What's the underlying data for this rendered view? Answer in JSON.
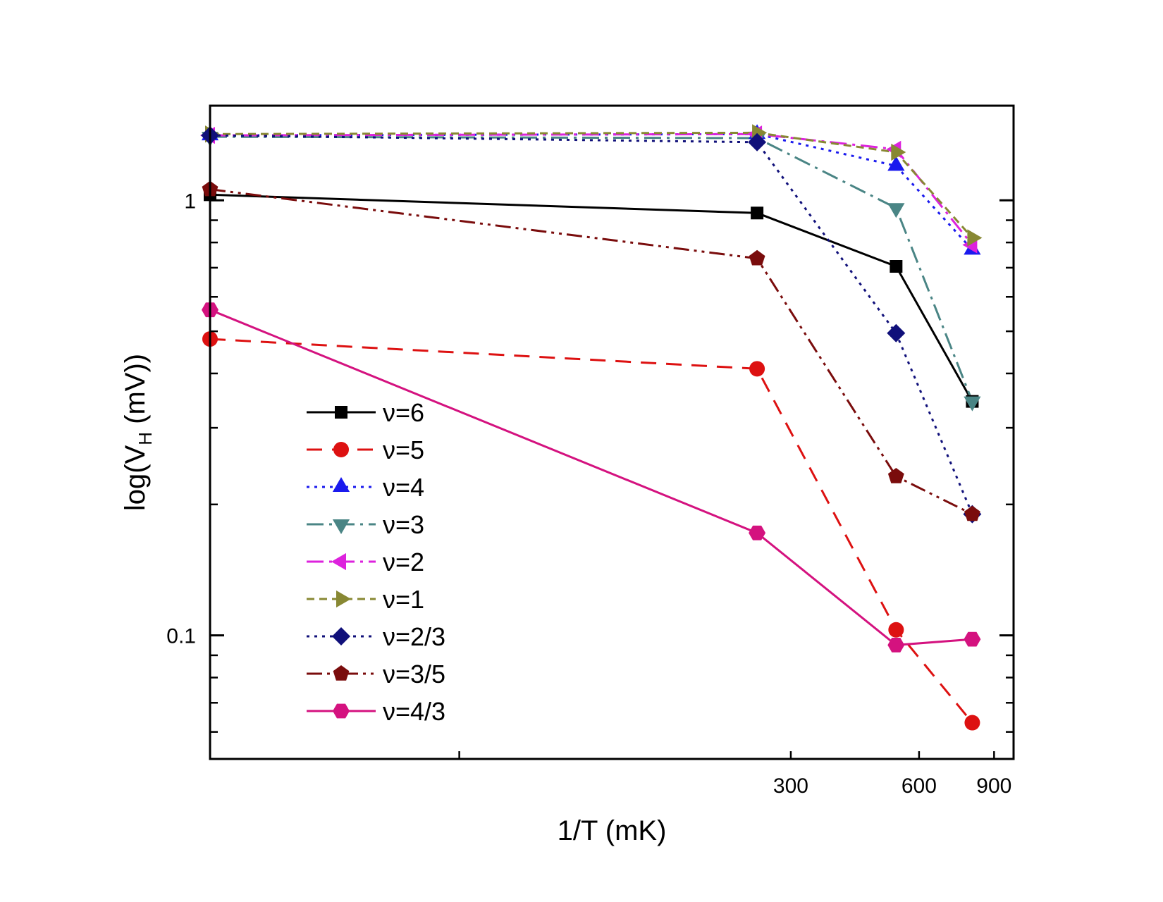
{
  "chart_data": {
    "type": "line",
    "title": "",
    "xlabel": "1/T (mK)",
    "ylabel_prefix": "log(V",
    "ylabel_sub": "H",
    "ylabel_suffix": " (mV))",
    "x_scale": "log",
    "y_scale": "log",
    "xlim": [
      13,
      1000
    ],
    "ylim": [
      0.052,
      1.65
    ],
    "x_ticks": [
      {
        "value": 300,
        "label": "300"
      },
      {
        "value": 600,
        "label": "600"
      },
      {
        "value": 900,
        "label": "900"
      }
    ],
    "x_minor_ticks": [
      13,
      50,
      300,
      600,
      900
    ],
    "y_ticks": [
      {
        "value": 1,
        "label": "1"
      },
      {
        "value": 0.1,
        "label": "0.1"
      }
    ],
    "y_minor_ticks": [
      0.06,
      0.07,
      0.08,
      0.09,
      0.2,
      0.3,
      0.4,
      0.5,
      0.6,
      0.7,
      0.8,
      0.9
    ],
    "legend_position": "center-left",
    "x": [
      13,
      250,
      530,
      800
    ],
    "series": [
      {
        "name": "ν=6",
        "color": "#000000",
        "dash": "solid",
        "marker": "square",
        "values": [
          1.03,
          0.935,
          0.705,
          0.345
        ]
      },
      {
        "name": "ν=5",
        "color": "#dd1111",
        "dash": "dash",
        "marker": "circle",
        "values": [
          0.48,
          0.41,
          0.103,
          0.063
        ]
      },
      {
        "name": "ν=4",
        "color": "#1a1aee",
        "dash": "dot",
        "marker": "triangle-up",
        "values": [
          1.41,
          1.42,
          1.2,
          0.77
        ]
      },
      {
        "name": "ν=3",
        "color": "#4a8585",
        "dash": "dashdot",
        "marker": "triangle-down",
        "values": [
          1.4,
          1.39,
          0.96,
          0.345
        ]
      },
      {
        "name": "ν=2",
        "color": "#dd22dd",
        "dash": "dashdot",
        "marker": "triangle-left",
        "values": [
          1.41,
          1.42,
          1.31,
          0.79
        ]
      },
      {
        "name": "ν=1",
        "color": "#888833",
        "dash": "shortdash",
        "marker": "triangle-right",
        "values": [
          1.42,
          1.43,
          1.29,
          0.82
        ]
      },
      {
        "name": "ν=2/3",
        "color": "#10107a",
        "dash": "dot",
        "marker": "diamond",
        "values": [
          1.41,
          1.36,
          0.495,
          0.19
        ]
      },
      {
        "name": "ν=3/5",
        "color": "#7a0c0c",
        "dash": "dashdotdot",
        "marker": "pentagon",
        "values": [
          1.06,
          0.735,
          0.232,
          0.19
        ]
      },
      {
        "name": "ν=4/3",
        "color": "#d4127f",
        "dash": "solid",
        "marker": "hexagon",
        "values": [
          0.56,
          0.172,
          0.095,
          0.098
        ]
      }
    ]
  }
}
